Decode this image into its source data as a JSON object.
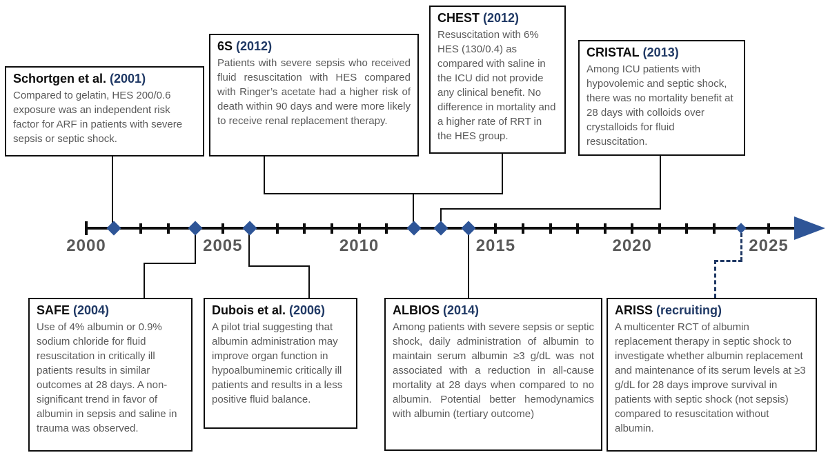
{
  "colors": {
    "title_year_navy": "#1F3864",
    "marker_blue": "#2E5597",
    "body_gray": "#595959",
    "line_black": "#0d0d0d"
  },
  "timeline": {
    "axis_label_years": [
      2000,
      2005,
      2010,
      2015,
      2020,
      2025
    ],
    "axis_start_year": 2000,
    "axis_end_year": 2025,
    "markers": [
      {
        "year": 2001,
        "event": "Schortgen et al."
      },
      {
        "year": 2004,
        "event": "SAFE"
      },
      {
        "year": 2006,
        "event": "Dubois et al."
      },
      {
        "year": 2012,
        "event": "6S / CHEST"
      },
      {
        "year": 2013,
        "event": "CRISTAL"
      },
      {
        "year": 2014,
        "event": "ALBIOS"
      },
      {
        "year": 2024,
        "event": "ARISS (recruiting)",
        "small": true
      }
    ]
  },
  "events": {
    "schortgen": {
      "name": "Schortgen et al.",
      "year": "(2001)",
      "body": "Compared to gelatin, HES 200/0.6 exposure was an independent risk factor for ARF in patients with severe sepsis or septic shock."
    },
    "s6": {
      "name": "6S",
      "year": "(2012)",
      "body": "Patients with severe sepsis who received fluid resuscitation with HES compared with Ringer’s acetate had a higher risk of death within 90 days and were more likely to receive renal replacement therapy."
    },
    "chest": {
      "name": "CHEST",
      "year": "(2012)",
      "body": "Resuscitation with 6% HES (130/0.4) as compared with saline in the ICU did not provide any clinical benefit. No difference in mortality and a higher rate of RRT in the HES group."
    },
    "cristal": {
      "name": "CRISTAL",
      "year": "(2013)",
      "body": "Among ICU patients with hypovolemic and septic shock, there was no mortality benefit at 28 days with colloids over crystalloids for fluid resuscitation."
    },
    "safe": {
      "name": "SAFE",
      "year": "(2004)",
      "body": "Use of 4% albumin or 0.9% sodium chloride for fluid resuscitation in critically ill patients results in similar outcomes at 28 days. A non-significant trend in favor of albumin in sepsis and saline in trauma was observed."
    },
    "dubois": {
      "name": "Dubois et al.",
      "year": "(2006)",
      "body": "A pilot trial suggesting that albumin administration may improve organ function in hypoalbuminemic critically ill patients and results in a less positive fluid balance."
    },
    "albios": {
      "name": "ALBIOS",
      "year": "(2014)",
      "body": "Among patients with severe sepsis or septic shock, daily administration of albumin to maintain serum albumin ≥3 g/dL was not associated with a reduction in all-cause mortality at 28 days when compared to no albumin. Potential better hemodynamics with albumin (tertiary outcome)"
    },
    "ariss": {
      "name": "ARISS",
      "year": "(recruiting)",
      "body": "A multicenter RCT of albumin replacement therapy in septic shock to investigate whether albumin replacement and maintenance of its serum levels at ≥3 g/dL for 28 days improve survival in patients with septic shock (not sepsis) compared to resuscitation without albumin."
    }
  }
}
